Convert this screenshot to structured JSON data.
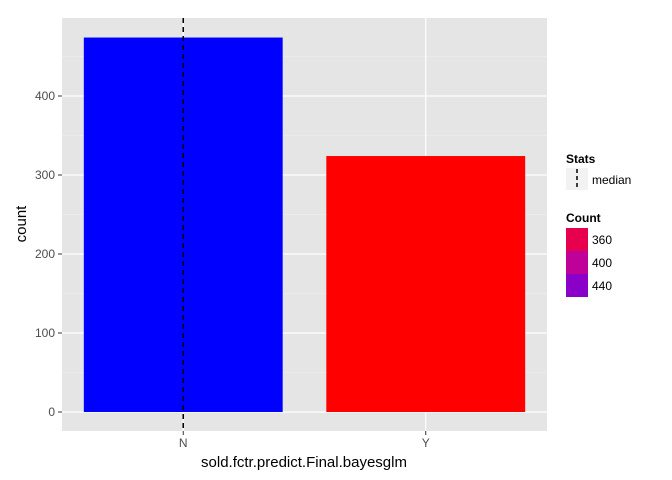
{
  "chart_data": {
    "type": "bar",
    "title": "",
    "xlabel": "sold.fctr.predict.Final.bayesglm",
    "ylabel": "count",
    "categories": [
      "N",
      "Y"
    ],
    "values": [
      474,
      324
    ],
    "bar_colors": [
      "#0000FF",
      "#FF0000"
    ],
    "ylim": [
      0,
      500
    ],
    "yticks": [
      0,
      100,
      200,
      300,
      400
    ],
    "grid": true,
    "panel_background": "#E5E5E5",
    "grid_color": "#FFFFFF",
    "median_line": {
      "category": "N",
      "style": "dashed",
      "color": "#000000"
    },
    "legends": [
      {
        "title": "Stats",
        "placement": "right",
        "entries": [
          {
            "label": "median",
            "symbol": "dashed-vertical-line"
          }
        ]
      },
      {
        "title": "Count",
        "placement": "right",
        "entries": [
          {
            "label": "360",
            "color": "#E6004D"
          },
          {
            "label": "400",
            "color": "#BF0099"
          },
          {
            "label": "440",
            "color": "#8A00C8"
          }
        ]
      }
    ]
  }
}
